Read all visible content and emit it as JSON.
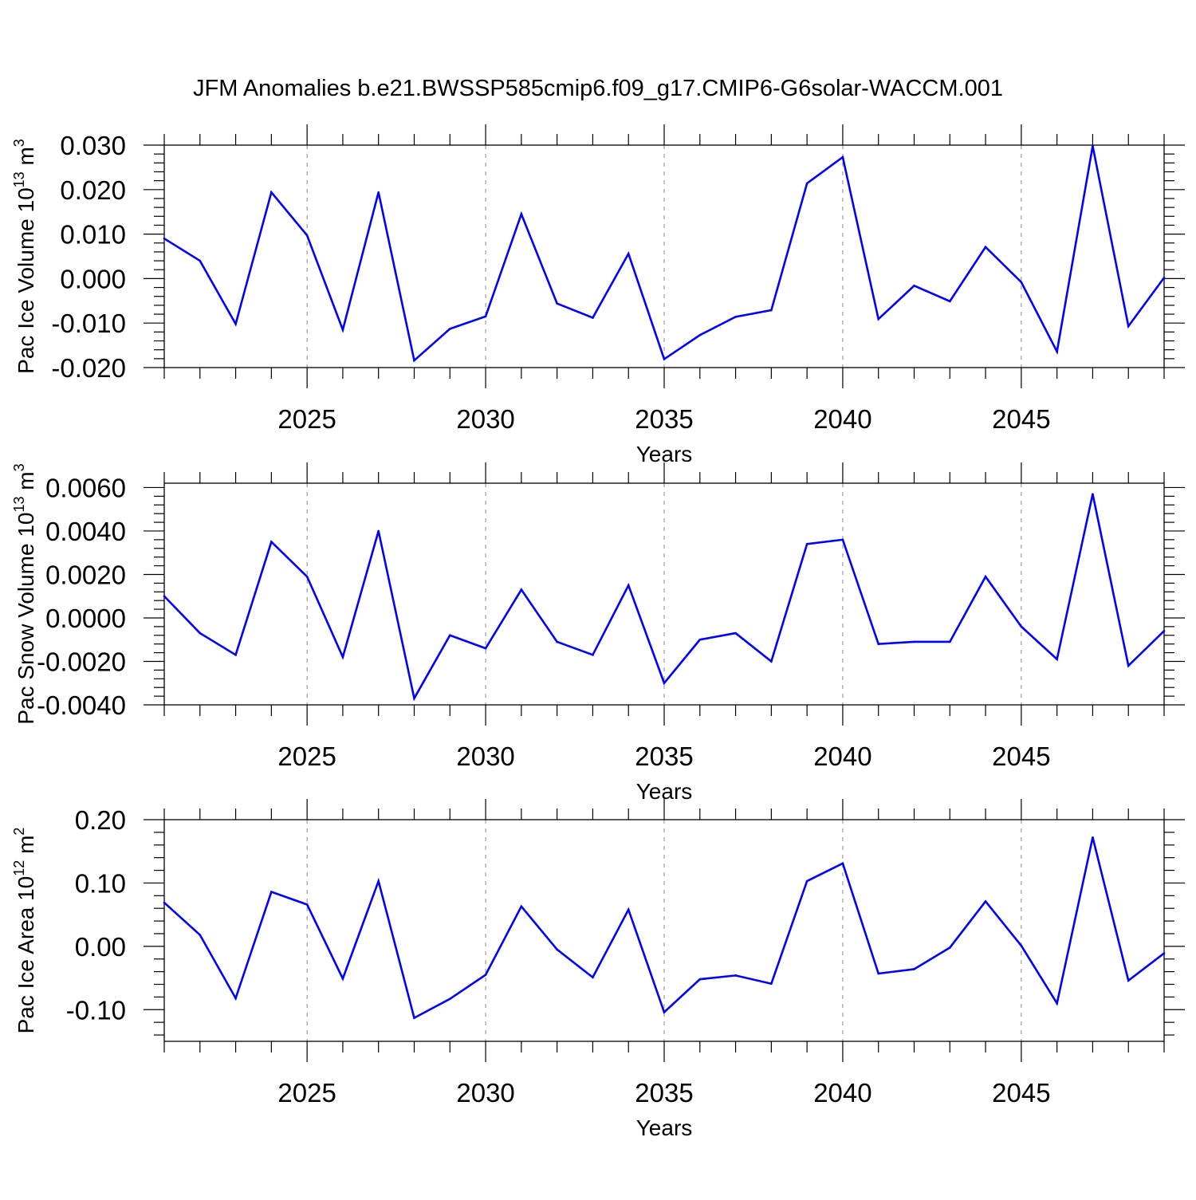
{
  "title": "JFM Anomalies b.e21.BWSSP585cmip6.f09_g17.CMIP6-G6solar-WACCM.001",
  "line_color": "#0000ff",
  "chart_data": [
    {
      "type": "line",
      "ylabel_main": "Pac Ice Volume 10",
      "ylabel_exp": "13",
      "ylabel_unit": " m",
      "ylabel_unit_exp": "3",
      "xlabel": "Years",
      "xlim": [
        2021,
        2049
      ],
      "ylim": [
        -0.02,
        0.03
      ],
      "yticks": [
        -0.02,
        -0.01,
        0.0,
        0.01,
        0.02,
        0.03
      ],
      "ytick_labels": [
        "-0.020",
        "-0.010",
        "0.000",
        "0.010",
        "0.020",
        "0.030"
      ],
      "xticks": [
        2025,
        2030,
        2035,
        2040,
        2045
      ],
      "xtick_labels": [
        "2025",
        "2030",
        "2035",
        "2040",
        "2045"
      ],
      "x": [
        2021,
        2022,
        2023,
        2024,
        2025,
        2026,
        2027,
        2028,
        2029,
        2030,
        2031,
        2032,
        2033,
        2034,
        2035,
        2036,
        2037,
        2038,
        2039,
        2040,
        2041,
        2042,
        2043,
        2044,
        2045,
        2046,
        2047,
        2048,
        2049
      ],
      "values": [
        0.009,
        0.004,
        -0.0102,
        0.0194,
        0.0097,
        -0.0115,
        0.0194,
        -0.0184,
        -0.0113,
        -0.0085,
        0.0145,
        -0.0056,
        -0.0088,
        0.0056,
        -0.0181,
        -0.0127,
        -0.0086,
        -0.0071,
        0.0214,
        0.0273,
        -0.0091,
        -0.0016,
        -0.0051,
        0.0071,
        -0.0008,
        -0.0164,
        0.0298,
        -0.0107,
        0.0002
      ]
    },
    {
      "type": "line",
      "ylabel_main": "Pac Snow Volume 10",
      "ylabel_exp": "13",
      "ylabel_unit": " m",
      "ylabel_unit_exp": "3",
      "xlabel": "Years",
      "xlim": [
        2021,
        2049
      ],
      "ylim": [
        -0.004,
        0.0062
      ],
      "yticks": [
        -0.004,
        -0.002,
        0.0,
        0.002,
        0.004,
        0.006
      ],
      "ytick_labels": [
        "-0.0040",
        "-0.0020",
        "0.0000",
        "0.0020",
        "0.0040",
        "0.0060"
      ],
      "xticks": [
        2025,
        2030,
        2035,
        2040,
        2045
      ],
      "xtick_labels": [
        "2025",
        "2030",
        "2035",
        "2040",
        "2045"
      ],
      "x": [
        2021,
        2022,
        2023,
        2024,
        2025,
        2026,
        2027,
        2028,
        2029,
        2030,
        2031,
        2032,
        2033,
        2034,
        2035,
        2036,
        2037,
        2038,
        2039,
        2040,
        2041,
        2042,
        2043,
        2044,
        2045,
        2046,
        2047,
        2048,
        2049
      ],
      "values": [
        0.001,
        -0.0007,
        -0.0017,
        0.0035,
        0.0019,
        -0.0018,
        0.004,
        -0.0037,
        -0.0008,
        -0.0014,
        0.0013,
        -0.0011,
        -0.0017,
        0.0015,
        -0.003,
        -0.001,
        -0.0007,
        -0.002,
        0.0034,
        0.0036,
        -0.0012,
        -0.0011,
        -0.0011,
        0.0019,
        -0.0004,
        -0.0019,
        0.0057,
        -0.0022,
        -0.0006
      ]
    },
    {
      "type": "line",
      "ylabel_main": "Pac Ice Area 10",
      "ylabel_exp": "12",
      "ylabel_unit": " m",
      "ylabel_unit_exp": "2",
      "xlabel": "Years",
      "xlim": [
        2021,
        2049
      ],
      "ylim": [
        -0.15,
        0.2
      ],
      "yticks": [
        -0.1,
        0.0,
        0.1,
        0.2
      ],
      "ytick_labels": [
        "-0.10",
        "0.00",
        "0.10",
        "0.20"
      ],
      "xticks": [
        2025,
        2030,
        2035,
        2040,
        2045
      ],
      "xtick_labels": [
        "2025",
        "2030",
        "2035",
        "2040",
        "2045"
      ],
      "x": [
        2021,
        2022,
        2023,
        2024,
        2025,
        2026,
        2027,
        2028,
        2029,
        2030,
        2031,
        2032,
        2033,
        2034,
        2035,
        2036,
        2037,
        2038,
        2039,
        2040,
        2041,
        2042,
        2043,
        2044,
        2045,
        2046,
        2047,
        2048,
        2049
      ],
      "values": [
        0.069,
        0.018,
        -0.082,
        0.086,
        0.066,
        -0.051,
        0.103,
        -0.113,
        -0.083,
        -0.045,
        0.063,
        -0.005,
        -0.049,
        0.058,
        -0.104,
        -0.052,
        -0.046,
        -0.059,
        0.103,
        0.131,
        -0.043,
        -0.036,
        -0.002,
        0.071,
        0.001,
        -0.09,
        0.172,
        -0.054,
        -0.011
      ]
    }
  ]
}
